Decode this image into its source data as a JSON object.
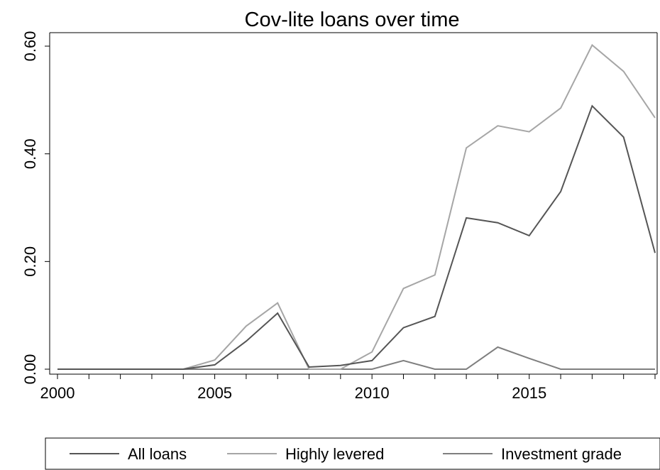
{
  "chart_data": {
    "type": "line",
    "title": "Cov-lite loans over time",
    "xlabel": "",
    "ylabel": "",
    "x": [
      2000,
      2001,
      2002,
      2003,
      2004,
      2005,
      2006,
      2007,
      2008,
      2009,
      2010,
      2011,
      2012,
      2013,
      2014,
      2015,
      2016,
      2017,
      2018,
      2019
    ],
    "xlim": [
      2000,
      2019
    ],
    "ylim": [
      0,
      0.6
    ],
    "xticks_major": [
      2000,
      2005,
      2010,
      2015
    ],
    "xticks_major_labels": [
      "2000",
      "2005",
      "2010",
      "2015"
    ],
    "yticks": [
      0,
      0.2,
      0.4,
      0.6
    ],
    "ytick_labels": [
      "0.00",
      "0.20",
      "0.40",
      "0.60"
    ],
    "grid": false,
    "legend_position": "bottom",
    "series": [
      {
        "name": "All loans",
        "color": "#555555",
        "values": [
          0,
          0,
          0,
          0,
          0,
          0.008,
          0.052,
          0.104,
          0.004,
          0.007,
          0.016,
          0.077,
          0.098,
          0.281,
          0.272,
          0.248,
          0.33,
          0.489,
          0.431,
          0.216
        ]
      },
      {
        "name": "Highly levered",
        "color": "#a6a6a6",
        "values": [
          0,
          0,
          0,
          0,
          0,
          0.017,
          0.08,
          0.123,
          0,
          0,
          0.032,
          0.15,
          0.175,
          0.411,
          0.452,
          0.441,
          0.485,
          0.602,
          0.553,
          0.467
        ]
      },
      {
        "name": "Investment grade",
        "color": "#7f7f7f",
        "values": [
          0,
          0,
          0,
          0,
          0,
          0,
          0,
          0,
          0,
          0,
          0,
          0.016,
          0,
          0,
          0.041,
          0.02,
          0,
          0,
          0,
          0
        ]
      }
    ]
  }
}
